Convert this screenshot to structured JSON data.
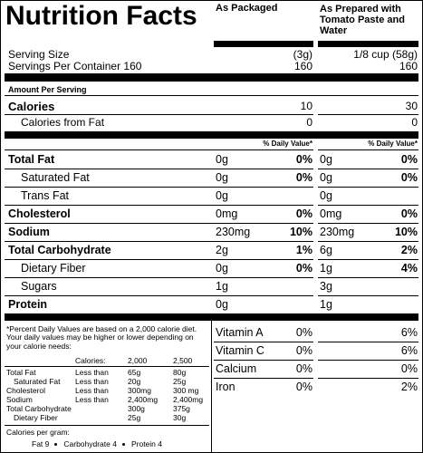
{
  "title": "Nutrition Facts",
  "columns": [
    "As Packaged",
    "As Prepared with Tomato Paste and Water"
  ],
  "serving_size": {
    "label": "Serving Size",
    "values": [
      "(3g)",
      "1/8 cup (58g)"
    ]
  },
  "servings_per_container": {
    "label": "Servings Per Container 160",
    "values": [
      "160",
      "160"
    ]
  },
  "amount_per_serving": "Amount Per Serving",
  "calories": {
    "label": "Calories",
    "values": [
      "10",
      "30"
    ]
  },
  "calories_from_fat": {
    "label": "Calories from Fat",
    "values": [
      "0",
      "0"
    ]
  },
  "daily_value_header": [
    "% Daily Value*",
    "% Daily Value*"
  ],
  "nutrients": [
    {
      "name": "Total Fat",
      "bold": true,
      "indent": false,
      "packaged": {
        "amount": "0g",
        "dv": "0%"
      },
      "prepared": {
        "amount": "0g",
        "dv": "0%"
      }
    },
    {
      "name": "Saturated Fat",
      "bold": false,
      "indent": true,
      "packaged": {
        "amount": "0g",
        "dv": "0%"
      },
      "prepared": {
        "amount": "0g",
        "dv": "0%"
      }
    },
    {
      "name": "Trans Fat",
      "bold": false,
      "indent": true,
      "packaged": {
        "amount": "0g"
      },
      "prepared": {
        "amount": "0g"
      }
    },
    {
      "name": "Cholesterol",
      "bold": true,
      "indent": false,
      "packaged": {
        "amount": "0mg",
        "dv": "0%"
      },
      "prepared": {
        "amount": "0mg",
        "dv": "0%"
      }
    },
    {
      "name": "Sodium",
      "bold": true,
      "indent": false,
      "packaged": {
        "amount": "230mg",
        "dv": "10%"
      },
      "prepared": {
        "amount": "230mg",
        "dv": "10%"
      }
    },
    {
      "name": "Total Carbohydrate",
      "bold": true,
      "indent": false,
      "packaged": {
        "amount": "2g",
        "dv": "1%"
      },
      "prepared": {
        "amount": "6g",
        "dv": "2%"
      }
    },
    {
      "name": "Dietary Fiber",
      "bold": false,
      "indent": true,
      "packaged": {
        "amount": "0g",
        "dv": "0%"
      },
      "prepared": {
        "amount": "1g",
        "dv": "4%"
      }
    },
    {
      "name": "Sugars",
      "bold": false,
      "indent": true,
      "packaged": {
        "amount": "1g"
      },
      "prepared": {
        "amount": "3g"
      }
    },
    {
      "name": "Protein",
      "bold": true,
      "indent": false,
      "packaged": {
        "amount": "0g"
      },
      "prepared": {
        "amount": "1g"
      }
    }
  ],
  "vitamins": [
    [
      "Vitamin A",
      "0%",
      "6%"
    ],
    [
      "Vitamin C",
      "0%",
      "6%"
    ],
    [
      "Calcium",
      "0%",
      "0%"
    ],
    [
      "Iron",
      "0%",
      "2%"
    ]
  ],
  "footnote": "*Percent Daily Values are based on a 2,000 calorie diet. Your daily values may be higher or lower depending on your calorie needs:",
  "reference_table": {
    "header": [
      "Calories:",
      "2,000",
      "2,500"
    ],
    "rows": [
      [
        "Total Fat",
        "Less than",
        "65g",
        "80g"
      ],
      [
        "Saturated Fat",
        "Less than",
        "20g",
        "25g"
      ],
      [
        "Cholesterol",
        "Less than",
        "300mg",
        "300 mg"
      ],
      [
        "Sodium",
        "Less than",
        "2,400mg",
        "2,400mg"
      ],
      [
        "Total Carbohydrate",
        "300g",
        "375g"
      ],
      [
        "Dietary Fiber",
        "25g",
        "30g"
      ]
    ]
  },
  "calories_per_gram": {
    "label": "Calories per gram:",
    "items": [
      "Fat 9",
      "Carbohydrate 4",
      "Protein 4"
    ]
  }
}
